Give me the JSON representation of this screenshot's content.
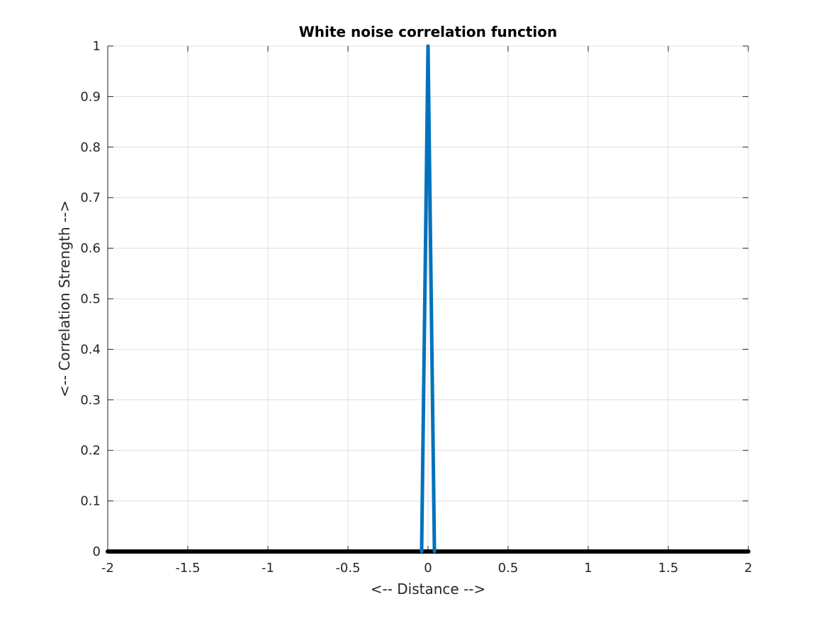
{
  "chart_data": {
    "type": "line",
    "title": "White noise correlation function",
    "xlabel": "<-- Distance -->",
    "ylabel": "<-- Correlation Strength -->",
    "xlim": [
      -2,
      2
    ],
    "ylim": [
      0,
      1
    ],
    "grid": true,
    "x_ticks": [
      "-2",
      "-1.5",
      "-1",
      "-0.5",
      "0",
      "0.5",
      "1",
      "1.5",
      "2"
    ],
    "y_ticks": [
      "0",
      "0.1",
      "0.2",
      "0.3",
      "0.4",
      "0.5",
      "0.6",
      "0.7",
      "0.8",
      "0.9",
      "1"
    ],
    "series": [
      {
        "color": "#0072BD",
        "x": [
          -0.04,
          0,
          0.04
        ],
        "y": [
          0,
          1,
          0
        ]
      },
      {
        "color": "#000000",
        "x": [
          -2,
          2
        ],
        "y": [
          0,
          0
        ]
      }
    ]
  }
}
